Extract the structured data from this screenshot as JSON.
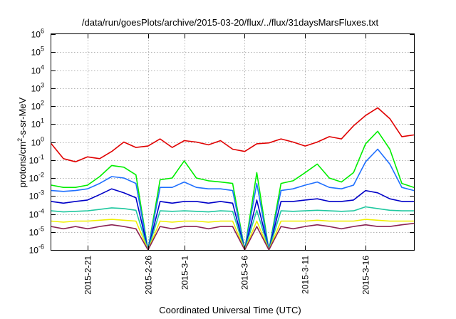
{
  "chart_data": {
    "type": "line",
    "title": "/data/run/goesPlots/archive/2015-03-20/flux/../flux/31daysMarsFluxes.txt",
    "xlabel": "Coordinated Universal Time (UTC)",
    "ylabel": {
      "prefix": "protons/cm",
      "superscript": "2",
      "suffix": "-s-sr-MeV"
    },
    "yscale": "log",
    "ylim": [
      1e-06,
      1000000.0
    ],
    "xlim": [
      "2015-02-18",
      "2015-03-20"
    ],
    "x_ticks": [
      {
        "date": "2015-02-21",
        "label": "2015-2-21"
      },
      {
        "date": "2015-02-26",
        "label": "2015-2-26"
      },
      {
        "date": "2015-03-01",
        "label": "2015-3-1"
      },
      {
        "date": "2015-03-06",
        "label": "2015-3-6"
      },
      {
        "date": "2015-03-11",
        "label": "2015-3-11"
      },
      {
        "date": "2015-03-16",
        "label": "2015-3-16"
      }
    ],
    "y_ticks": [
      {
        "value": 1e-06,
        "base": "10",
        "exp": "-6"
      },
      {
        "value": 1e-05,
        "base": "10",
        "exp": "-5"
      },
      {
        "value": 0.0001,
        "base": "10",
        "exp": "-4"
      },
      {
        "value": 0.001,
        "base": "10",
        "exp": "-3"
      },
      {
        "value": 0.01,
        "base": "10",
        "exp": "-2"
      },
      {
        "value": 0.1,
        "base": "10",
        "exp": "-1"
      },
      {
        "value": 1,
        "base": "10",
        "exp": "0"
      },
      {
        "value": 10.0,
        "base": "10",
        "exp": "1"
      },
      {
        "value": 100.0,
        "base": "10",
        "exp": "2"
      },
      {
        "value": 1000.0,
        "base": "10",
        "exp": "3"
      },
      {
        "value": 10000.0,
        "base": "10",
        "exp": "4"
      },
      {
        "value": 100000.0,
        "base": "10",
        "exp": "5"
      },
      {
        "value": 1000000.0,
        "base": "10",
        "exp": "6"
      }
    ],
    "grid": true,
    "legend": "none",
    "series": [
      {
        "color": "#e00000",
        "points": [
          [
            "2015-02-18",
            0.8
          ],
          [
            "2015-02-19",
            0.12
          ],
          [
            "2015-02-20",
            0.08
          ],
          [
            "2015-02-21",
            0.15
          ],
          [
            "2015-02-22",
            0.12
          ],
          [
            "2015-02-23",
            0.3
          ],
          [
            "2015-02-24",
            1.0
          ],
          [
            "2015-02-25",
            0.5
          ],
          [
            "2015-02-26",
            0.6
          ],
          [
            "2015-02-27",
            1.5
          ],
          [
            "2015-02-28",
            0.5
          ],
          [
            "2015-03-01",
            1.2
          ],
          [
            "2015-03-02",
            1.0
          ],
          [
            "2015-03-03",
            0.7
          ],
          [
            "2015-03-04",
            1.2
          ],
          [
            "2015-03-05",
            0.4
          ],
          [
            "2015-03-06",
            0.3
          ],
          [
            "2015-03-07",
            0.8
          ],
          [
            "2015-03-08",
            0.9
          ],
          [
            "2015-03-09",
            1.5
          ],
          [
            "2015-03-10",
            1.0
          ],
          [
            "2015-03-11",
            0.6
          ],
          [
            "2015-03-12",
            1.0
          ],
          [
            "2015-03-13",
            2.0
          ],
          [
            "2015-03-14",
            1.5
          ],
          [
            "2015-03-15",
            8.0
          ],
          [
            "2015-03-16",
            30.0
          ],
          [
            "2015-03-17",
            80.0
          ],
          [
            "2015-03-18",
            20.0
          ],
          [
            "2015-03-19",
            2.0
          ],
          [
            "2015-03-20",
            2.5
          ]
        ]
      },
      {
        "color": "#00ee00",
        "points": [
          [
            "2015-02-18",
            0.004
          ],
          [
            "2015-02-19",
            0.003
          ],
          [
            "2015-02-20",
            0.003
          ],
          [
            "2015-02-21",
            0.004
          ],
          [
            "2015-02-22",
            0.012
          ],
          [
            "2015-02-23",
            0.05
          ],
          [
            "2015-02-24",
            0.04
          ],
          [
            "2015-02-25",
            0.015
          ],
          [
            "2015-02-26",
            1e-06
          ],
          [
            "2015-02-27",
            0.008
          ],
          [
            "2015-02-28",
            0.01
          ],
          [
            "2015-03-01",
            0.09
          ],
          [
            "2015-03-02",
            0.01
          ],
          [
            "2015-03-03",
            0.007
          ],
          [
            "2015-03-04",
            0.006
          ],
          [
            "2015-03-05",
            0.005
          ],
          [
            "2015-03-06",
            1e-06
          ],
          [
            "2015-03-07",
            0.02
          ],
          [
            "2015-03-08",
            1e-06
          ],
          [
            "2015-03-09",
            0.005
          ],
          [
            "2015-03-10",
            0.007
          ],
          [
            "2015-03-11",
            0.02
          ],
          [
            "2015-03-12",
            0.06
          ],
          [
            "2015-03-13",
            0.01
          ],
          [
            "2015-03-14",
            0.006
          ],
          [
            "2015-03-15",
            0.02
          ],
          [
            "2015-03-16",
            0.8
          ],
          [
            "2015-03-17",
            4.0
          ],
          [
            "2015-03-18",
            0.4
          ],
          [
            "2015-03-19",
            0.005
          ],
          [
            "2015-03-20",
            0.003
          ]
        ]
      },
      {
        "color": "#1e6fff",
        "points": [
          [
            "2015-02-18",
            0.002
          ],
          [
            "2015-02-19",
            0.0018
          ],
          [
            "2015-02-20",
            0.002
          ],
          [
            "2015-02-21",
            0.0025
          ],
          [
            "2015-02-22",
            0.005
          ],
          [
            "2015-02-23",
            0.012
          ],
          [
            "2015-02-24",
            0.01
          ],
          [
            "2015-02-25",
            0.005
          ],
          [
            "2015-02-26",
            1e-06
          ],
          [
            "2015-02-27",
            0.003
          ],
          [
            "2015-02-28",
            0.003
          ],
          [
            "2015-03-01",
            0.006
          ],
          [
            "2015-03-02",
            0.003
          ],
          [
            "2015-03-03",
            0.0025
          ],
          [
            "2015-03-04",
            0.0025
          ],
          [
            "2015-03-05",
            0.002
          ],
          [
            "2015-03-06",
            1e-06
          ],
          [
            "2015-03-07",
            0.005
          ],
          [
            "2015-03-08",
            1e-06
          ],
          [
            "2015-03-09",
            0.002
          ],
          [
            "2015-03-10",
            0.0025
          ],
          [
            "2015-03-11",
            0.004
          ],
          [
            "2015-03-12",
            0.006
          ],
          [
            "2015-03-13",
            0.003
          ],
          [
            "2015-03-14",
            0.0025
          ],
          [
            "2015-03-15",
            0.004
          ],
          [
            "2015-03-16",
            0.08
          ],
          [
            "2015-03-17",
            0.4
          ],
          [
            "2015-03-18",
            0.06
          ],
          [
            "2015-03-19",
            0.003
          ],
          [
            "2015-03-20",
            0.002
          ]
        ]
      },
      {
        "color": "#0000c8",
        "points": [
          [
            "2015-02-18",
            0.0005
          ],
          [
            "2015-02-19",
            0.0004
          ],
          [
            "2015-02-20",
            0.0005
          ],
          [
            "2015-02-21",
            0.0006
          ],
          [
            "2015-02-22",
            0.0012
          ],
          [
            "2015-02-23",
            0.0025
          ],
          [
            "2015-02-24",
            0.0015
          ],
          [
            "2015-02-25",
            0.0008
          ],
          [
            "2015-02-26",
            1e-06
          ],
          [
            "2015-02-27",
            0.0005
          ],
          [
            "2015-02-28",
            0.0004
          ],
          [
            "2015-03-01",
            0.0005
          ],
          [
            "2015-03-02",
            0.0005
          ],
          [
            "2015-03-03",
            0.0004
          ],
          [
            "2015-03-04",
            0.0005
          ],
          [
            "2015-03-05",
            0.0004
          ],
          [
            "2015-03-06",
            1e-06
          ],
          [
            "2015-03-07",
            0.0006
          ],
          [
            "2015-03-08",
            1e-06
          ],
          [
            "2015-03-09",
            0.0005
          ],
          [
            "2015-03-10",
            0.0005
          ],
          [
            "2015-03-11",
            0.0006
          ],
          [
            "2015-03-12",
            0.0007
          ],
          [
            "2015-03-13",
            0.0005
          ],
          [
            "2015-03-14",
            0.0005
          ],
          [
            "2015-03-15",
            0.0006
          ],
          [
            "2015-03-16",
            0.002
          ],
          [
            "2015-03-17",
            0.0015
          ],
          [
            "2015-03-18",
            0.0007
          ],
          [
            "2015-03-19",
            0.0005
          ],
          [
            "2015-03-20",
            0.0005
          ]
        ]
      },
      {
        "color": "#20c8a0",
        "points": [
          [
            "2015-02-18",
            0.00015
          ],
          [
            "2015-02-19",
            0.00013
          ],
          [
            "2015-02-20",
            0.00014
          ],
          [
            "2015-02-21",
            0.00015
          ],
          [
            "2015-02-22",
            0.00018
          ],
          [
            "2015-02-23",
            0.00022
          ],
          [
            "2015-02-24",
            0.0002
          ],
          [
            "2015-02-25",
            0.00016
          ],
          [
            "2015-02-26",
            1e-06
          ],
          [
            "2015-02-27",
            0.00015
          ],
          [
            "2015-02-28",
            0.00014
          ],
          [
            "2015-03-01",
            0.00015
          ],
          [
            "2015-03-02",
            0.00014
          ],
          [
            "2015-03-03",
            0.00013
          ],
          [
            "2015-03-04",
            0.00015
          ],
          [
            "2015-03-05",
            0.00014
          ],
          [
            "2015-03-06",
            1e-06
          ],
          [
            "2015-03-07",
            0.00016
          ],
          [
            "2015-03-08",
            1e-06
          ],
          [
            "2015-03-09",
            0.00015
          ],
          [
            "2015-03-10",
            0.00014
          ],
          [
            "2015-03-11",
            0.00015
          ],
          [
            "2015-03-12",
            0.00016
          ],
          [
            "2015-03-13",
            0.00015
          ],
          [
            "2015-03-14",
            0.00014
          ],
          [
            "2015-03-15",
            0.00015
          ],
          [
            "2015-03-16",
            0.00025
          ],
          [
            "2015-03-17",
            0.0002
          ],
          [
            "2015-03-18",
            0.00016
          ],
          [
            "2015-03-19",
            0.00015
          ],
          [
            "2015-03-20",
            0.00015
          ]
        ]
      },
      {
        "color": "#f0f000",
        "points": [
          [
            "2015-02-18",
            4e-05
          ],
          [
            "2015-02-19",
            3.5e-05
          ],
          [
            "2015-02-20",
            4e-05
          ],
          [
            "2015-02-21",
            4e-05
          ],
          [
            "2015-02-22",
            4.5e-05
          ],
          [
            "2015-02-23",
            5e-05
          ],
          [
            "2015-02-24",
            4.5e-05
          ],
          [
            "2015-02-25",
            4e-05
          ],
          [
            "2015-02-26",
            1e-06
          ],
          [
            "2015-02-27",
            4e-05
          ],
          [
            "2015-02-28",
            3.5e-05
          ],
          [
            "2015-03-01",
            4e-05
          ],
          [
            "2015-03-02",
            4e-05
          ],
          [
            "2015-03-03",
            3.5e-05
          ],
          [
            "2015-03-04",
            4e-05
          ],
          [
            "2015-03-05",
            4e-05
          ],
          [
            "2015-03-06",
            1e-06
          ],
          [
            "2015-03-07",
            4e-05
          ],
          [
            "2015-03-08",
            1e-06
          ],
          [
            "2015-03-09",
            4e-05
          ],
          [
            "2015-03-10",
            4e-05
          ],
          [
            "2015-03-11",
            4e-05
          ],
          [
            "2015-03-12",
            4.5e-05
          ],
          [
            "2015-03-13",
            4e-05
          ],
          [
            "2015-03-14",
            4e-05
          ],
          [
            "2015-03-15",
            4e-05
          ],
          [
            "2015-03-16",
            5e-05
          ],
          [
            "2015-03-17",
            4.5e-05
          ],
          [
            "2015-03-18",
            4e-05
          ],
          [
            "2015-03-19",
            4e-05
          ],
          [
            "2015-03-20",
            4e-05
          ]
        ]
      },
      {
        "color": "#8b2252",
        "points": [
          [
            "2015-02-18",
            2e-05
          ],
          [
            "2015-02-19",
            1.5e-05
          ],
          [
            "2015-02-20",
            2e-05
          ],
          [
            "2015-02-21",
            1.5e-05
          ],
          [
            "2015-02-22",
            2e-05
          ],
          [
            "2015-02-23",
            2.5e-05
          ],
          [
            "2015-02-24",
            2e-05
          ],
          [
            "2015-02-25",
            1.5e-05
          ],
          [
            "2015-02-26",
            1e-06
          ],
          [
            "2015-02-27",
            2e-05
          ],
          [
            "2015-02-28",
            1.5e-05
          ],
          [
            "2015-03-01",
            2e-05
          ],
          [
            "2015-03-02",
            2e-05
          ],
          [
            "2015-03-03",
            1.5e-05
          ],
          [
            "2015-03-04",
            2e-05
          ],
          [
            "2015-03-05",
            2e-05
          ],
          [
            "2015-03-06",
            1e-06
          ],
          [
            "2015-03-07",
            2e-05
          ],
          [
            "2015-03-08",
            1e-06
          ],
          [
            "2015-03-09",
            2e-05
          ],
          [
            "2015-03-10",
            1.5e-05
          ],
          [
            "2015-03-11",
            2e-05
          ],
          [
            "2015-03-12",
            2.5e-05
          ],
          [
            "2015-03-13",
            2e-05
          ],
          [
            "2015-03-14",
            1.5e-05
          ],
          [
            "2015-03-15",
            2e-05
          ],
          [
            "2015-03-16",
            2.5e-05
          ],
          [
            "2015-03-17",
            2e-05
          ],
          [
            "2015-03-18",
            2e-05
          ],
          [
            "2015-03-19",
            2.5e-05
          ],
          [
            "2015-03-20",
            3e-05
          ]
        ]
      }
    ]
  }
}
